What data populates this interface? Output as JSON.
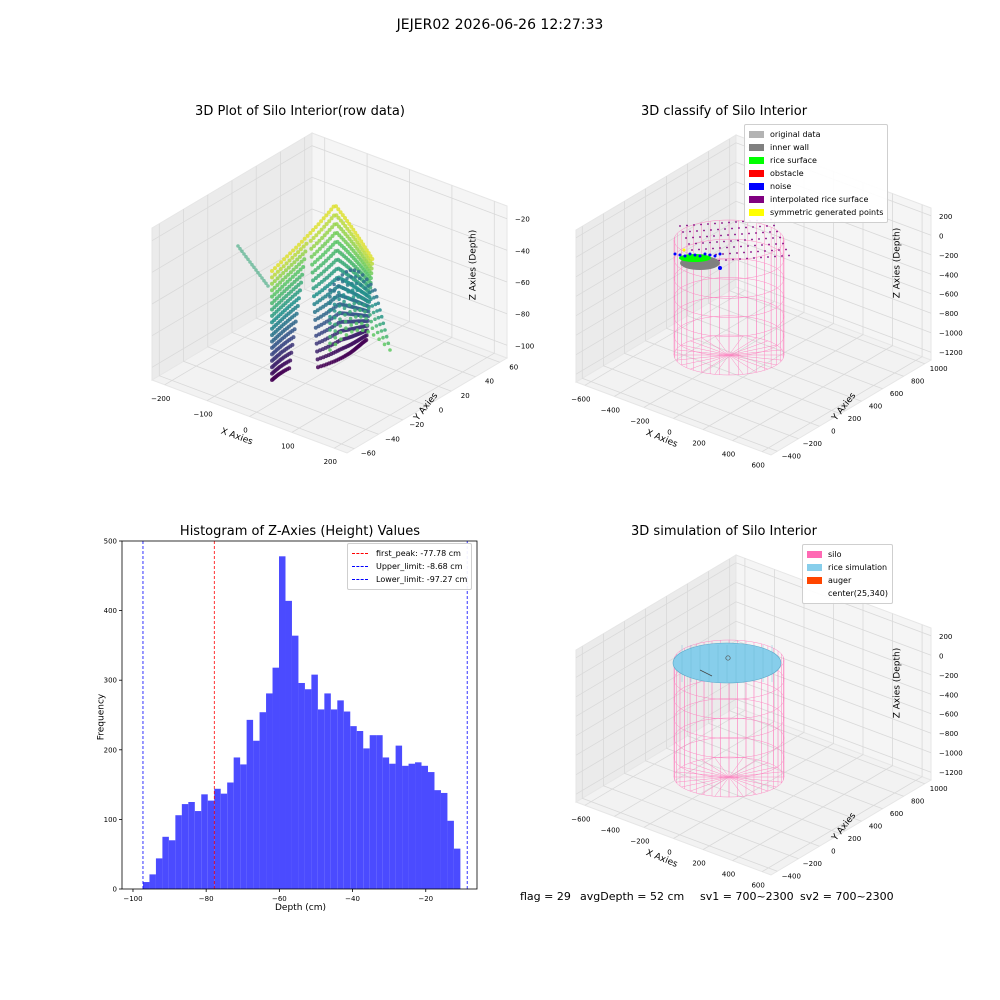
{
  "suptitle": "JEJER02 2026-06-26 12:27:33",
  "footer": {
    "flag": "flag = 29",
    "avg_depth": "avgDepth = 52 cm",
    "sv1": "sv1 = 700~2300",
    "sv2": "sv2 = 700~2300"
  },
  "chart_data": [
    {
      "type": "scatter",
      "title": "3D Plot of Silo Interior(row data)",
      "xlabel": "X Axies",
      "ylabel": "Y Axies",
      "zlabel": "Z Axies (Depth)",
      "x_ticks": [
        "−200",
        "−100",
        "0",
        "100",
        "200"
      ],
      "y_ticks": [
        "−60",
        "−40",
        "−20",
        "0",
        "20",
        "40",
        "60"
      ],
      "z_ticks": [
        "−20",
        "−40",
        "−60",
        "−80",
        "−100"
      ],
      "colormap": "viridis",
      "colors": {
        "low": "#440154",
        "mid": "#21918c",
        "high": "#fde725"
      }
    },
    {
      "type": "scatter",
      "title": "3D classify of Silo Interior",
      "xlabel": "X Axies",
      "ylabel": "Y Axies",
      "zlabel": "Z Axies (Depth)",
      "x_ticks": [
        "−600",
        "−400",
        "−200",
        "0",
        "200",
        "400",
        "600"
      ],
      "y_ticks": [
        "−400",
        "−200",
        "0",
        "200",
        "400",
        "600",
        "800",
        "1000"
      ],
      "z_ticks": [
        "200",
        "0",
        "−200",
        "−400",
        "−600",
        "−800",
        "−1000",
        "−1200"
      ],
      "legend": [
        {
          "label": "original data",
          "color": "#b3b3b3"
        },
        {
          "label": "inner wall",
          "color": "#808080"
        },
        {
          "label": "rice surface",
          "color": "#00ff00"
        },
        {
          "label": "obstacle",
          "color": "#ff0000"
        },
        {
          "label": "noise",
          "color": "#0000ff"
        },
        {
          "label": "interpolated rice surface",
          "color": "#800080"
        },
        {
          "label": "symmetric generated points",
          "color": "#ffff00"
        }
      ],
      "silo_color": "#ff69b4"
    },
    {
      "type": "bar",
      "title": "Histogram of Z-Axies (Height) Values",
      "xlabel": "Depth (cm)",
      "ylabel": "Frequency",
      "xlim": [
        -103,
        -6
      ],
      "ylim": [
        0,
        500
      ],
      "x_ticks": [
        -100,
        -80,
        -60,
        -40,
        -20
      ],
      "y_ticks": [
        0,
        100,
        200,
        300,
        400,
        500
      ],
      "bar_color": "#4b4bff",
      "bin_start": -97.27,
      "bin_width": 1.77,
      "values": [
        10,
        21,
        44,
        75,
        70,
        106,
        122,
        125,
        112,
        136,
        127,
        144,
        137,
        153,
        189,
        179,
        243,
        213,
        254,
        281,
        318,
        478,
        414,
        364,
        296,
        287,
        308,
        258,
        281,
        258,
        271,
        255,
        234,
        227,
        202,
        221,
        221,
        189,
        180,
        206,
        177,
        180,
        182,
        177,
        168,
        142,
        138,
        98,
        58
      ],
      "vlines": [
        {
          "label": "first_peak: -77.78 cm",
          "x": -77.78,
          "color": "#ff0000"
        },
        {
          "label": "Upper_limit: -8.68 cm",
          "x": -8.68,
          "color": "#0000ff"
        },
        {
          "label": "Lower_limit: -97.27 cm",
          "x": -97.27,
          "color": "#0000ff"
        }
      ]
    },
    {
      "type": "scatter",
      "title": "3D simulation of Silo Interior",
      "xlabel": "X Axies",
      "ylabel": "Y Axies",
      "zlabel": "Z Axies (Depth)",
      "x_ticks": [
        "−600",
        "−400",
        "−200",
        "0",
        "200",
        "400",
        "600"
      ],
      "y_ticks": [
        "−400",
        "−200",
        "0",
        "200",
        "400",
        "600",
        "800",
        "1000"
      ],
      "z_ticks": [
        "200",
        "0",
        "−200",
        "−400",
        "−600",
        "−800",
        "−1000",
        "−1200"
      ],
      "legend": [
        {
          "label": "silo",
          "color": "#ff69b4"
        },
        {
          "label": "rice simulation",
          "color": "#87ceeb"
        },
        {
          "label": "auger",
          "color": "#ff4500"
        },
        {
          "label": "center(25,340)",
          "color": ""
        }
      ]
    }
  ]
}
